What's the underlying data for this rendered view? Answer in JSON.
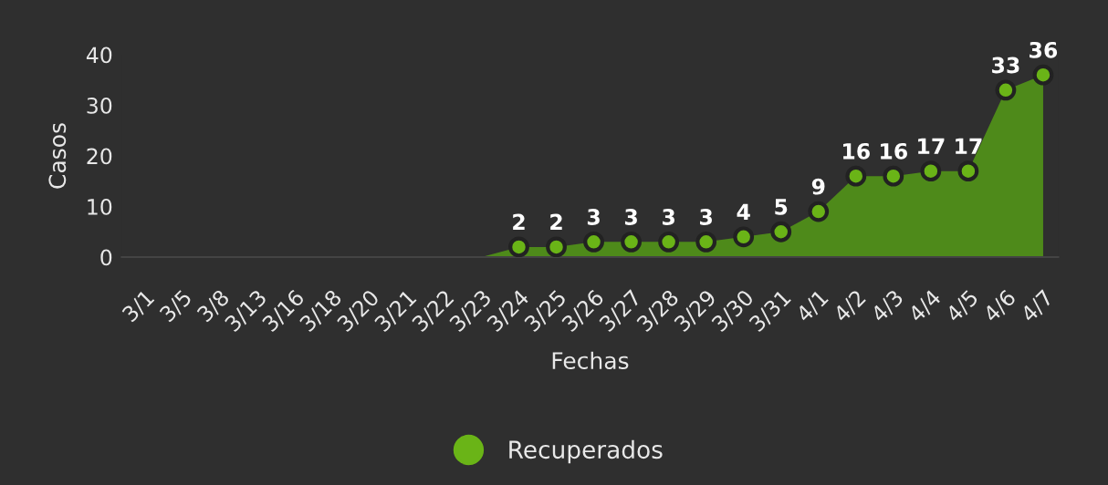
{
  "chart_data": {
    "type": "area",
    "xlabel": "Fechas",
    "ylabel": "Casos",
    "categories": [
      "3/1",
      "3/5",
      "3/8",
      "3/13",
      "3/16",
      "3/18",
      "3/20",
      "3/21",
      "3/22",
      "3/23",
      "3/24",
      "3/25",
      "3/26",
      "3/27",
      "3/28",
      "3/29",
      "3/30",
      "3/31",
      "4/1",
      "4/2",
      "4/3",
      "4/4",
      "4/5",
      "4/6",
      "4/7"
    ],
    "series": [
      {
        "name": "Recuperados",
        "color": "#4e8a1a",
        "colors": [
          "#6ab417",
          "#6ab417",
          "#6ab417",
          "#6ab417",
          "#6ab417",
          "#6ab417",
          "#6ab417",
          "#6ab417",
          "#6ab417",
          "#6ab417",
          "#6ab417",
          "#6ab417",
          "#6ab417",
          "#6ab417",
          "#6ab417",
          "#6ab417",
          "#6ab417",
          "#6ab417",
          "#6ab417",
          "#6ab417",
          "#6ab417",
          "#6ab417",
          "#6ab417",
          "#6ab417",
          "#6ab417"
        ],
        "values": [
          0,
          0,
          0,
          0,
          0,
          0,
          0,
          0,
          0,
          0,
          2,
          2,
          3,
          3,
          3,
          3,
          4,
          5,
          9,
          16,
          16,
          17,
          17,
          33,
          36
        ],
        "value_labels": [
          null,
          null,
          null,
          null,
          null,
          null,
          null,
          null,
          null,
          null,
          "2",
          "2",
          "3",
          "3",
          "3",
          "3",
          "4",
          "5",
          "9",
          "16",
          "16",
          "17",
          "17",
          "33",
          "36"
        ]
      }
    ],
    "ylim": [
      0,
      40
    ],
    "yticks": [
      0,
      10,
      20,
      30,
      40
    ],
    "grid": false,
    "legend": "bottom",
    "marker": "circle"
  }
}
